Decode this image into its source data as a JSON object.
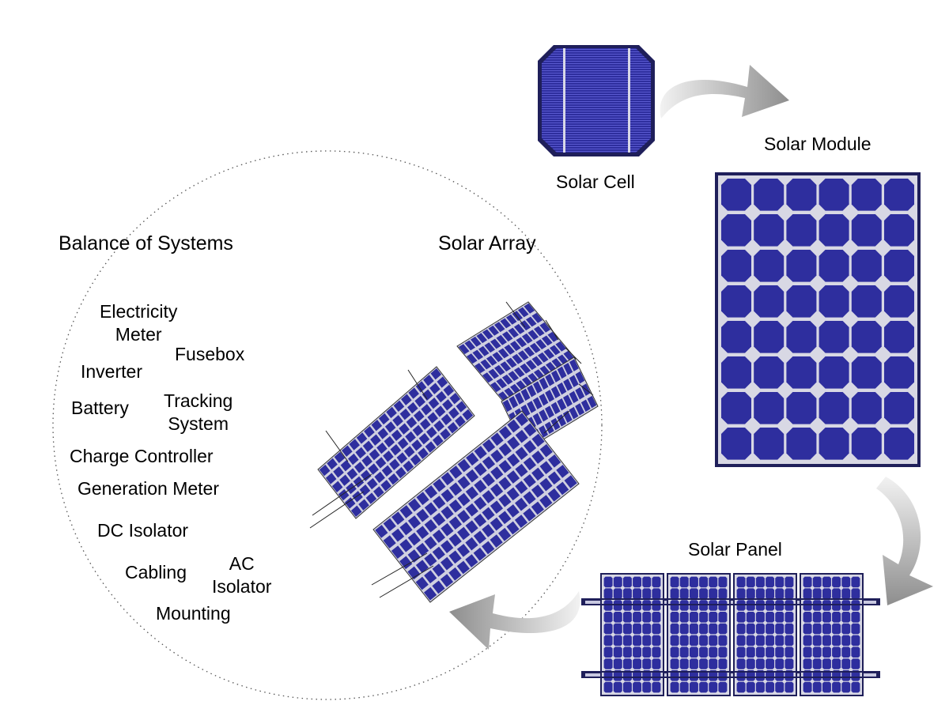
{
  "labels": {
    "solar_cell": "Solar Cell",
    "solar_module": "Solar Module",
    "solar_panel": "Solar Panel",
    "solar_array": "Solar Array",
    "balance_of_systems": "Balance of Systems"
  },
  "bos_items": {
    "electricity_meter_1": "Electricity",
    "electricity_meter_2": "Meter",
    "fusebox": "Fusebox",
    "inverter": "Inverter",
    "tracking_system_1": "Tracking",
    "tracking_system_2": "System",
    "battery": "Battery",
    "charge_controller": "Charge Controller",
    "generation_meter": "Generation Meter",
    "dc_isolator": "DC Isolator",
    "ac_isolator_1": "AC",
    "ac_isolator_2": "Isolator",
    "cabling": "Cabling",
    "mounting": "Mounting"
  },
  "colors": {
    "cell_blue": "#2e2e9e",
    "cell_dark": "#1e1e6e",
    "frame": "#1f1f5a",
    "module_bg": "#d8d8e4",
    "arrow_light": "#d6d6d6",
    "arrow_dark": "#8e8e8e",
    "circle_dots": "#555555"
  },
  "icons": {
    "flow_arrow": "curved-arrow-icon"
  }
}
